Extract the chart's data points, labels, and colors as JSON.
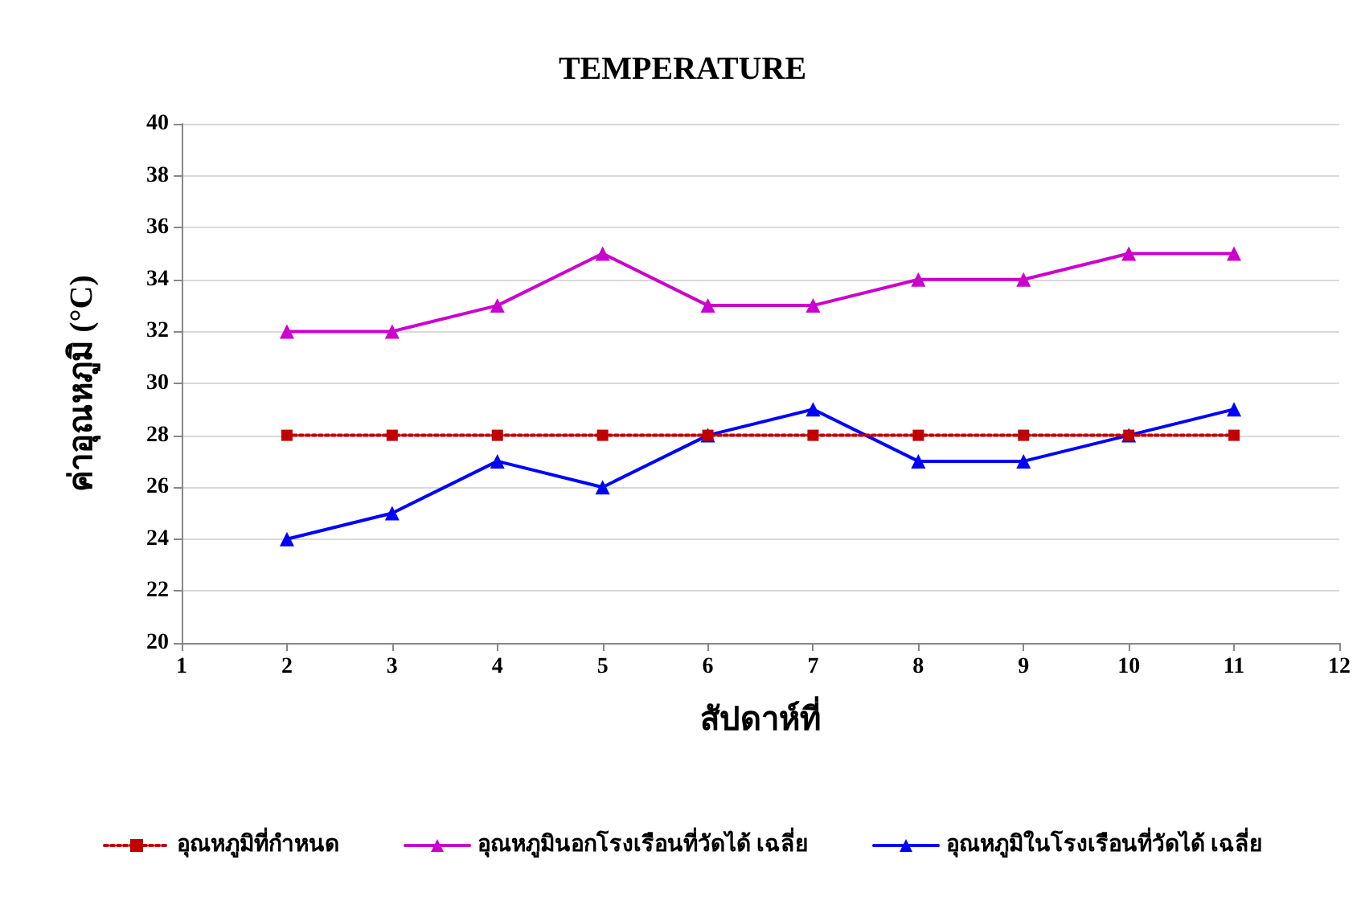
{
  "chart_data": {
    "type": "line",
    "title": "TEMPERATURE",
    "xlabel": "สัปดาห์ที่",
    "ylabel": "ค่าอุณหภูมิ (°C)",
    "x": [
      2,
      3,
      4,
      5,
      6,
      7,
      8,
      9,
      10,
      11
    ],
    "series": [
      {
        "name": "อุณหภูมิที่กำหนด",
        "color": "#c00000",
        "marker": "square",
        "line_style": "dotted",
        "values": [
          28,
          28,
          28,
          28,
          28,
          28,
          28,
          28,
          28,
          28
        ]
      },
      {
        "name": "อุณหภูมินอกโรงเรือนที่วัดได้ เฉลี่ย",
        "color": "#cc00cc",
        "marker": "triangle",
        "line_style": "solid",
        "values": [
          32,
          32,
          33,
          35,
          33,
          33,
          34,
          34,
          35,
          35
        ]
      },
      {
        "name": "อุณหภูมิในโรงเรือนที่วัดได้ เฉลี่ย",
        "color": "#0000ff",
        "marker": "triangle",
        "line_style": "solid",
        "values": [
          24,
          25,
          27,
          26,
          28,
          29,
          27,
          27,
          28,
          29
        ]
      }
    ],
    "xlim": [
      1,
      12
    ],
    "xticks": [
      1,
      2,
      3,
      4,
      5,
      6,
      7,
      8,
      9,
      10,
      11,
      12
    ],
    "ylim": [
      20,
      40
    ],
    "yticks": [
      20,
      22,
      24,
      26,
      28,
      30,
      32,
      34,
      36,
      38,
      40
    ],
    "grid": "y",
    "legend": "bottom"
  }
}
